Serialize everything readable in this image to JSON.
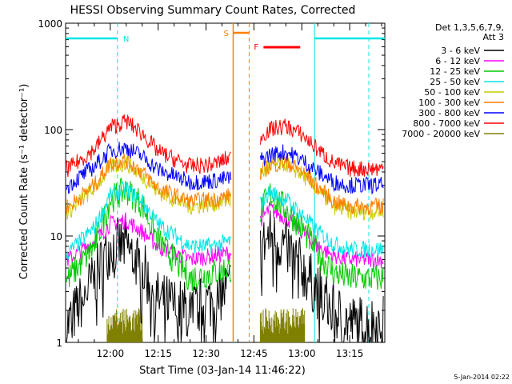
{
  "chart_data": {
    "type": "line",
    "title": "HESSI Observing Summary Count Rates, Corrected",
    "xlabel": "Start Time (03-Jan-14 11:46:22)",
    "ylabel": "Corrected Count Rate (s⁻¹ detector⁻¹)",
    "xlim": [
      "11:46",
      "13:26"
    ],
    "xticks": [
      "12:00",
      "12:15",
      "12:30",
      "12:45",
      "13:00",
      "13:15"
    ],
    "ylim": [
      1,
      1000
    ],
    "yscale": "log",
    "yticks": [
      "1",
      "10",
      "100",
      "1000"
    ],
    "legend": {
      "header": [
        "Det 1,3,5,6,7,9,",
        "Att 3"
      ],
      "placement": "right"
    },
    "date_stamp": "5-Jan-2014 02:22",
    "flags": [
      {
        "label": "N",
        "color": "#00e5e5",
        "style": "cyan"
      },
      {
        "label": "S",
        "color": "#ff7f00",
        "style": "orange"
      },
      {
        "label": "F",
        "color": "#ff0000",
        "style": "red"
      }
    ],
    "series": [
      {
        "name": "3 - 6 keV",
        "color": "#000000",
        "x": [
          "11:47",
          "11:55",
          "12:00",
          "12:05",
          "12:10",
          "12:15",
          "12:25",
          "12:32",
          "12:38",
          "12:50",
          "12:55",
          "13:00",
          "13:05",
          "13:10",
          "13:15",
          "13:20"
        ],
        "values": [
          1.5,
          4,
          8,
          8,
          5,
          2.5,
          2,
          2.5,
          3.5,
          10,
          8,
          5,
          3,
          2,
          1.5,
          1.5
        ]
      },
      {
        "name": "6 - 12 keV",
        "color": "#ff00ff",
        "x": [
          "11:47",
          "11:55",
          "12:00",
          "12:05",
          "12:10",
          "12:15",
          "12:25",
          "12:32",
          "12:38",
          "12:50",
          "12:55",
          "13:00",
          "13:05",
          "13:10",
          "13:15",
          "13:20"
        ],
        "values": [
          6,
          9,
          13,
          14,
          11,
          8,
          6,
          6.5,
          7,
          18,
          15,
          11,
          8,
          6.5,
          6,
          6
        ]
      },
      {
        "name": "12 - 25 keV",
        "color": "#00cc00",
        "x": [
          "11:47",
          "11:55",
          "12:00",
          "12:05",
          "12:10",
          "12:15",
          "12:25",
          "12:32",
          "12:38",
          "12:50",
          "12:55",
          "13:00",
          "13:05",
          "13:10",
          "13:15",
          "13:20"
        ],
        "values": [
          4,
          8,
          22,
          27,
          20,
          9,
          4,
          4.5,
          5,
          25,
          18,
          12,
          7,
          4.5,
          4,
          4
        ]
      },
      {
        "name": "25 - 50 keV",
        "color": "#00e5e5",
        "x": [
          "11:47",
          "11:55",
          "12:00",
          "12:05",
          "12:10",
          "12:15",
          "12:25",
          "12:32",
          "12:38",
          "12:50",
          "12:55",
          "13:00",
          "13:05",
          "13:10",
          "13:15",
          "13:20"
        ],
        "values": [
          7,
          12,
          24,
          28,
          21,
          13,
          8,
          8,
          9,
          26,
          22,
          16,
          11,
          8.5,
          7.5,
          7.5
        ]
      },
      {
        "name": "50 - 100 keV",
        "color": "#cccc00",
        "x": [
          "11:47",
          "11:55",
          "12:00",
          "12:05",
          "12:10",
          "12:15",
          "12:25",
          "12:32",
          "12:38",
          "12:50",
          "12:55",
          "13:00",
          "13:05",
          "13:10",
          "13:15",
          "13:20"
        ],
        "values": [
          17,
          28,
          45,
          48,
          37,
          26,
          19,
          20,
          22,
          45,
          48,
          38,
          27,
          19,
          17,
          17
        ]
      },
      {
        "name": "100 - 300 keV",
        "color": "#ff7f00",
        "x": [
          "11:47",
          "11:55",
          "12:00",
          "12:05",
          "12:10",
          "12:15",
          "12:25",
          "12:32",
          "12:38",
          "12:50",
          "12:55",
          "13:00",
          "13:05",
          "13:10",
          "13:15",
          "13:20"
        ],
        "values": [
          19,
          30,
          48,
          52,
          40,
          28,
          21,
          22,
          24,
          46,
          50,
          40,
          29,
          21,
          19,
          19
        ]
      },
      {
        "name": "300 - 800 keV",
        "color": "#0000ff",
        "x": [
          "11:47",
          "11:55",
          "12:00",
          "12:05",
          "12:10",
          "12:15",
          "12:25",
          "12:32",
          "12:38",
          "12:50",
          "12:55",
          "13:00",
          "13:05",
          "13:10",
          "13:15",
          "13:20"
        ],
        "values": [
          30,
          45,
          63,
          68,
          56,
          42,
          32,
          33,
          35,
          58,
          62,
          52,
          40,
          32,
          30,
          30
        ]
      },
      {
        "name": "800 - 7000 keV",
        "color": "#ff0000",
        "x": [
          "11:47",
          "11:55",
          "12:00",
          "12:05",
          "12:10",
          "12:15",
          "12:25",
          "12:32",
          "12:38",
          "12:50",
          "12:55",
          "13:00",
          "13:05",
          "13:10",
          "13:15",
          "13:20"
        ],
        "values": [
          43,
          65,
          105,
          120,
          92,
          62,
          45,
          47,
          55,
          100,
          108,
          90,
          65,
          48,
          43,
          43
        ]
      },
      {
        "name": "7000 - 20000 keV",
        "color": "#808000",
        "x": [
          "12:00",
          "12:05",
          "12:10",
          "12:50",
          "12:55",
          "13:00"
        ],
        "values": [
          1.5,
          2,
          1.5,
          2,
          2,
          1.5
        ]
      }
    ]
  }
}
